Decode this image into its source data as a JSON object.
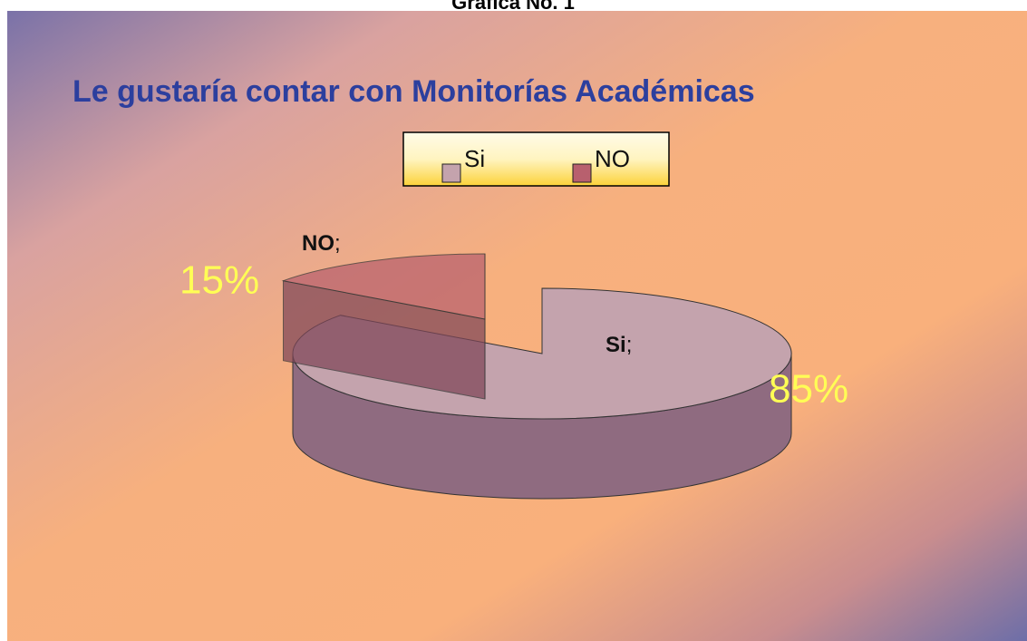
{
  "heading": "Grafica No. 1",
  "chart_data": {
    "type": "pie3d",
    "title": "Le gustaría contar con Monitorías Académicas",
    "categories": [
      "Si",
      "NO"
    ],
    "values": [
      85,
      15
    ],
    "value_labels": [
      "85%",
      "15%"
    ],
    "label_separator": ";",
    "colors": [
      "#c4a3ad",
      "#b8606e"
    ],
    "side_colors": [
      "#8f6b80",
      "#7f4658"
    ],
    "legend": "top",
    "exploded": [
      false,
      true
    ]
  }
}
